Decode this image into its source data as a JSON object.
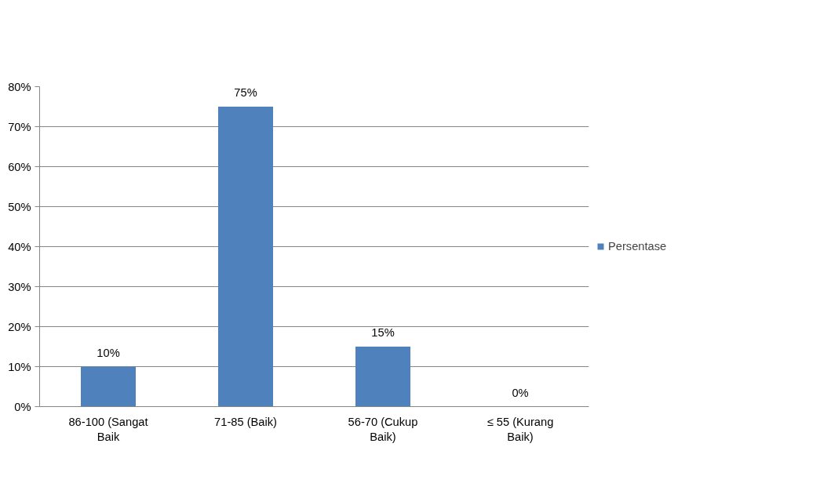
{
  "chart_data": {
    "type": "bar",
    "categories": [
      "86-100 (Sangat\nBaik",
      "71-85 (Baik)",
      "56-70 (Cukup\nBaik)",
      "≤ 55 (Kurang\nBaik)"
    ],
    "series": [
      {
        "name": "Persentase",
        "color": "#4f81bd",
        "values": [
          10,
          75,
          15,
          0
        ],
        "value_labels": [
          "10%",
          "75%",
          "15%",
          "0%"
        ]
      }
    ],
    "ylim": [
      0,
      80
    ],
    "yticks": [
      {
        "value": 0,
        "label": "0%"
      },
      {
        "value": 10,
        "label": "10%"
      },
      {
        "value": 20,
        "label": "20%"
      },
      {
        "value": 30,
        "label": "30%"
      },
      {
        "value": 40,
        "label": "40%"
      },
      {
        "value": 50,
        "label": "50%"
      },
      {
        "value": 60,
        "label": "60%"
      },
      {
        "value": 70,
        "label": "70%"
      },
      {
        "value": 80,
        "label": "80%"
      }
    ],
    "grid": "y",
    "legend": "right"
  }
}
